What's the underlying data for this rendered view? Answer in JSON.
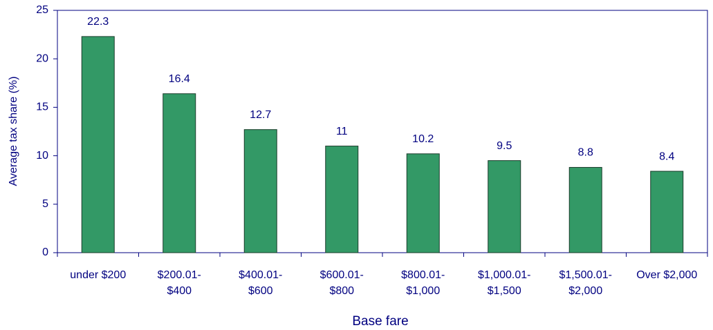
{
  "chart_data": {
    "type": "bar",
    "x_label": "Base fare",
    "y_label": "Average tax share (%)",
    "categories": [
      "under $200",
      "$200.01-\n$400",
      "$400.01-\n$600",
      "$600.01-\n$800",
      "$800.01-\n$1,000",
      "$1,000.01-\n$1,500",
      "$1,500.01-\n$2,000",
      "Over $2,000"
    ],
    "values": [
      22.3,
      16.4,
      12.7,
      11,
      10.2,
      9.5,
      8.8,
      8.4
    ],
    "color": "#339966",
    "ylim": [
      0,
      25
    ],
    "yticks": [
      0,
      5,
      10,
      15,
      20,
      25
    ],
    "grid": false
  }
}
